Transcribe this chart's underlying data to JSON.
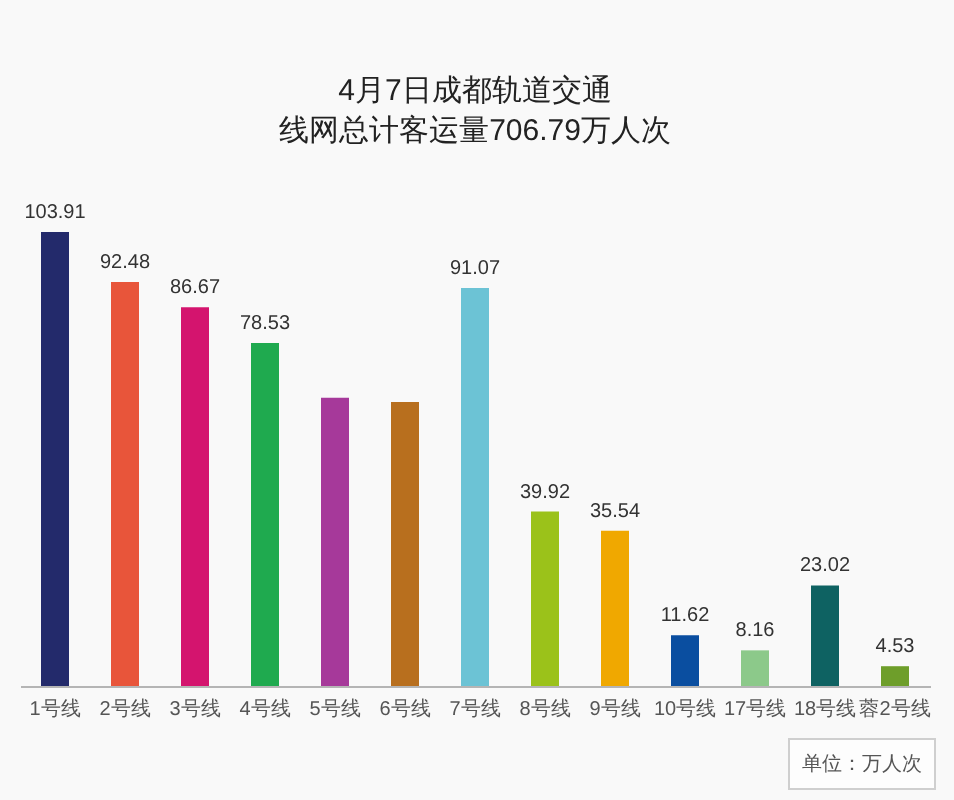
{
  "chart_data": {
    "type": "bar",
    "title": "4月7日成都轨道交通",
    "subtitle": "线网总计客运量706.79万人次",
    "categories": [
      "1号线",
      "2号线",
      "3号线",
      "4号线",
      "5号线",
      "6号线",
      "7号线",
      "8号线",
      "9号线",
      "10号线",
      "17号线",
      "18号线",
      "蓉2号线"
    ],
    "values": [
      103.91,
      92.48,
      86.67,
      78.53,
      66,
      65,
      91.07,
      39.92,
      35.54,
      11.62,
      8.16,
      23.02,
      4.53
    ],
    "colors": [
      "#232a6b",
      "#e8553a",
      "#d4146e",
      "#1faa4f",
      "#a6399a",
      "#b86f1e",
      "#6cc3d5",
      "#9bc21a",
      "#f0a800",
      "#0a4ea0",
      "#8cc98a",
      "#0e6262",
      "#6e9e2a"
    ],
    "value_labels": [
      "103.91",
      "92.48",
      "86.67",
      "78.53",
      null,
      null,
      "91.07",
      "39.92",
      "35.54",
      "11.62",
      "8.16",
      "23.02",
      "4.53"
    ],
    "annotations": [
      "单位：万人次"
    ],
    "grid": false
  }
}
